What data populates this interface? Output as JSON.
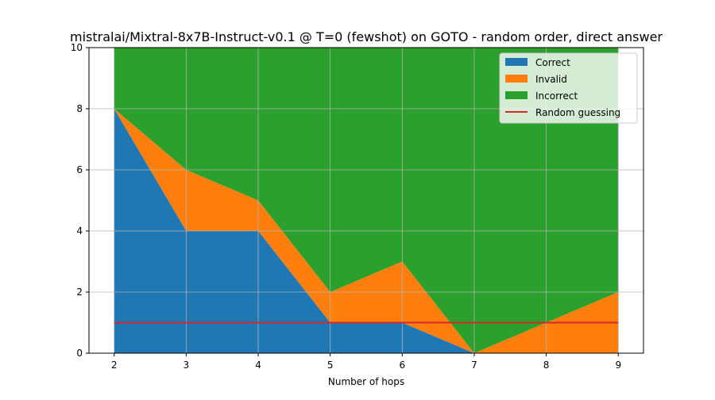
{
  "chart_data": {
    "type": "area",
    "title": "mistralai/Mixtral-8x7B-Instruct-v0.1 @ T=0 (fewshot) on GOTO - random order, direct answer",
    "xlabel": "Number of hops",
    "ylabel": "",
    "x": [
      2,
      3,
      4,
      5,
      6,
      7,
      8,
      9
    ],
    "xlim": [
      2,
      9
    ],
    "ylim": [
      0,
      10
    ],
    "x_ticks": [
      "2",
      "3",
      "4",
      "5",
      "6",
      "7",
      "8",
      "9"
    ],
    "y_ticks": [
      "0",
      "2",
      "4",
      "6",
      "8",
      "10"
    ],
    "grid": true,
    "legend_position": "top-right",
    "stacked": true,
    "series": [
      {
        "name": "Correct",
        "color": "#1f77b4",
        "values": [
          8,
          4,
          4,
          1,
          1,
          0,
          0,
          0
        ]
      },
      {
        "name": "Invalid",
        "color": "#ff7f0e",
        "values": [
          0,
          2,
          1,
          1,
          2,
          0,
          1,
          2
        ]
      },
      {
        "name": "Incorrect",
        "color": "#2ca02c",
        "values": [
          2,
          4,
          5,
          8,
          7,
          10,
          9,
          8
        ]
      }
    ],
    "reference_line": {
      "name": "Random guessing",
      "color": "#d62728",
      "value": 1
    }
  }
}
